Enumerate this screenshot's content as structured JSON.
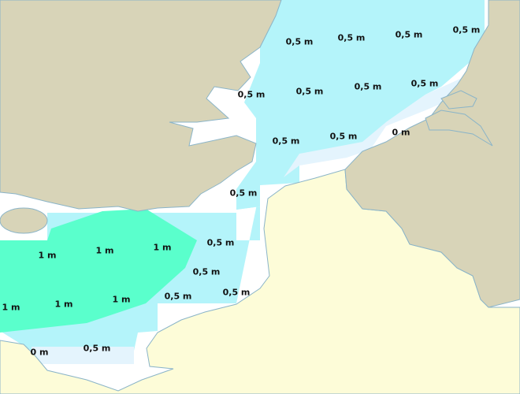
{
  "map": {
    "colors": {
      "water": "#ffffff",
      "zone_0m": "#e4f4fd",
      "zone_05m": "#b4f4fa",
      "zone_1m": "#5affcc",
      "land_north": "#d8d4b8",
      "land_france": "#fdfcd8",
      "coastline": "#8ab4c8"
    },
    "labels": [
      "0,5 m",
      "0,5 m",
      "0,5 m",
      "0,5 m",
      "0,5 m",
      "0,5 m",
      "0,5 m",
      "0,5 m",
      "0,5 m",
      "0,5 m",
      "0 m",
      "0,5 m",
      "0,5 m",
      "1 m",
      "1 m",
      "1 m",
      "0,5 m",
      "1 m",
      "1 m",
      "1 m",
      "0,5 m",
      "0,5 m",
      "0 m",
      "0,5 m"
    ]
  }
}
